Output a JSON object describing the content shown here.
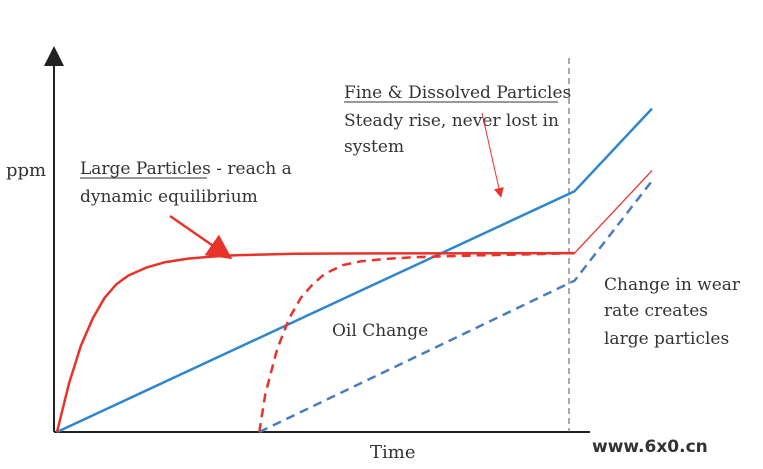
{
  "chart_data": {
    "type": "line",
    "xlabel": "Time",
    "ylabel": "ppm",
    "ylim": [
      0,
      100
    ],
    "xlim": [
      0,
      100
    ],
    "grid": false,
    "series": [
      {
        "name": "Fine & Dissolved Particles",
        "color": "#2e86cf",
        "style": "solid",
        "x": [
          0,
          87,
          100
        ],
        "y": [
          0,
          70,
          94
        ]
      },
      {
        "name": "Large Particles",
        "color": "#e8332a",
        "style": "solid",
        "x": [
          0,
          2,
          4,
          6,
          8,
          10,
          12,
          15,
          18,
          22,
          26,
          30,
          35,
          40,
          48,
          87
        ],
        "y": [
          0,
          14,
          25,
          33,
          39,
          43,
          45.5,
          47.8,
          49.3,
          50.4,
          51,
          51.4,
          51.6,
          51.8,
          51.9,
          52
        ]
      },
      {
        "name": "Large Particles (wear rate change)",
        "color": "#e8332a",
        "style": "thin",
        "x": [
          87,
          100
        ],
        "y": [
          52,
          76
        ]
      },
      {
        "name": "Large Particles after Oil Change",
        "color": "#e8332a",
        "style": "dashed",
        "x": [
          34,
          35,
          37,
          39,
          41,
          43,
          45,
          48,
          51,
          55,
          60,
          70,
          80,
          87
        ],
        "y": [
          0,
          11,
          24,
          33,
          39,
          43,
          46,
          48.5,
          49.6,
          50.3,
          50.8,
          51.3,
          51.7,
          52
        ]
      },
      {
        "name": "Fine Particles after Oil Change",
        "color": "#4a7dbd",
        "style": "dashed",
        "x": [
          34,
          87,
          100
        ],
        "y": [
          0,
          44,
          73
        ]
      }
    ],
    "annotations": {
      "fine_title": "Fine & Dissolved Particles",
      "fine_line1": "Steady rise, never lost in",
      "fine_line2": "system",
      "large_title": "Large Particles",
      "large_rest": " - reach a",
      "large_line2": "dynamic equilibrium",
      "oil_change": "Oil Change",
      "wear_line1": "Change in wear",
      "wear_line2": "rate creates",
      "wear_line3": "large particles"
    }
  },
  "watermark": {
    "text": "www.6x0.cn",
    "color": "#e8620c"
  }
}
